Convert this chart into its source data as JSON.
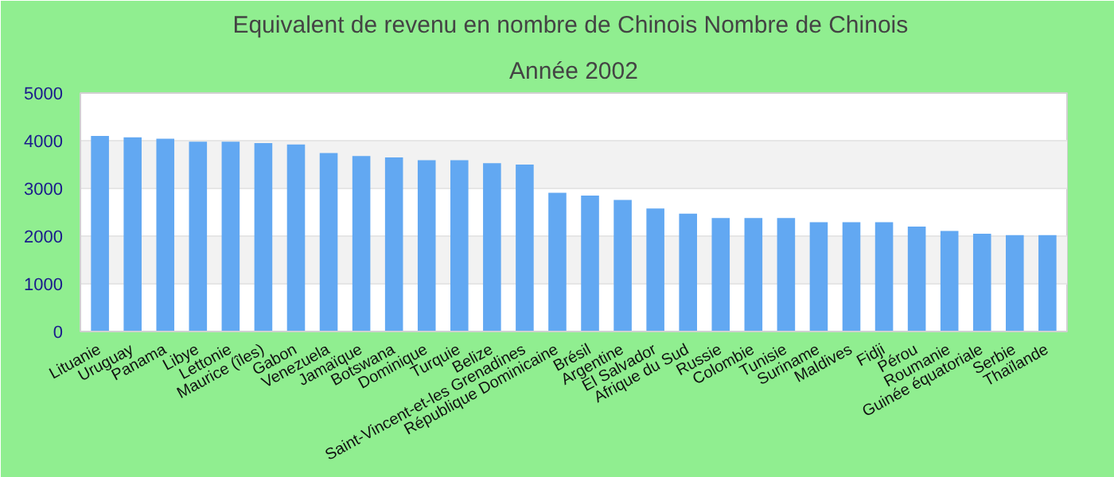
{
  "chart_data": {
    "type": "bar",
    "title": "Equivalent de revenu en nombre de Chinois  Nombre de Chinois",
    "subtitle": "Année 2002",
    "categories": [
      "Lituanie",
      "Uruguay",
      "Panama",
      "Libye",
      "Lettonie",
      "Maurice (îles)",
      "Gabon",
      "Venezuela",
      "Jamaïque",
      "Botswana",
      "Dominique",
      "Turquie",
      "Belize",
      "Saint-Vincent-et-les Grenadines",
      "République Dominicaine",
      "Brésil",
      "Argentine",
      "El Salvador",
      "Afrique du Sud",
      "Russie",
      "Colombie",
      "Tunisie",
      "Suriname",
      "Maldives",
      "Fidji",
      "Pérou",
      "Roumanie",
      "Guinée équatoriale",
      "Serbie",
      "Thaïlande"
    ],
    "values": [
      4100,
      4070,
      4040,
      3980,
      3980,
      3950,
      3920,
      3740,
      3680,
      3650,
      3590,
      3590,
      3530,
      3500,
      2910,
      2850,
      2760,
      2580,
      2470,
      2380,
      2380,
      2380,
      2290,
      2290,
      2290,
      2200,
      2110,
      2050,
      2020,
      2020
    ],
    "color": "#62a8f2",
    "ylim": [
      0,
      5000
    ],
    "yticks": [
      0,
      1000,
      2000,
      3000,
      4000,
      5000
    ],
    "grid": "y"
  }
}
